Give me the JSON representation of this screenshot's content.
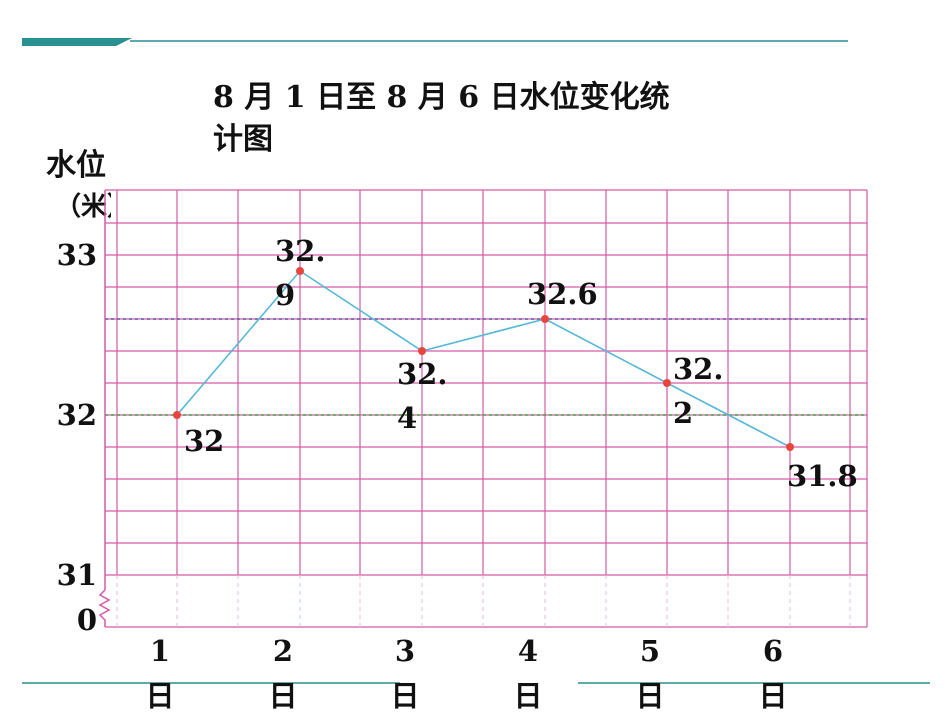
{
  "chart_data": {
    "type": "line",
    "title_line1": "8 月 1 日至 8 月 6 日水位变化统",
    "title_line2": "计图",
    "ylabel": "水位",
    "yunit": "（米）",
    "categories": [
      {
        "num": "1",
        "unit": "日"
      },
      {
        "num": "2",
        "unit": "日"
      },
      {
        "num": "3",
        "unit": "日"
      },
      {
        "num": "4",
        "unit": "日"
      },
      {
        "num": "5",
        "unit": "日"
      },
      {
        "num": "6",
        "unit": "日"
      }
    ],
    "values": [
      32,
      32.9,
      32.4,
      32.6,
      32.2,
      31.8
    ],
    "data_labels": [
      {
        "lines": [
          "32"
        ],
        "pos": "below-right"
      },
      {
        "lines": [
          "32.",
          "9"
        ],
        "pos": "above"
      },
      {
        "lines": [
          "32.",
          "4"
        ],
        "pos": "below"
      },
      {
        "lines": [
          "32.6"
        ],
        "pos": "above"
      },
      {
        "lines": [
          "32.",
          "2"
        ],
        "pos": "right"
      },
      {
        "lines": [
          "31.8"
        ],
        "pos": "below"
      }
    ],
    "yticks": [
      {
        "value": 33,
        "lines": [
          "33"
        ]
      },
      {
        "value": 32,
        "lines": [
          "32"
        ]
      },
      {
        "value": 31,
        "lines": [
          "31",
          "0"
        ]
      }
    ],
    "ylim": [
      31,
      33.2
    ],
    "axis_break": true,
    "reference_lines": [
      {
        "value": 32.6,
        "color": "#5a5aa8",
        "style": "dashed"
      },
      {
        "value": 32,
        "color": "#3aa83a",
        "style": "dashed"
      }
    ],
    "grid": true,
    "colors": {
      "grid": "#d65aa8",
      "line": "#55b8d8",
      "point": "#e8453c",
      "decor": "#2a8f8f"
    }
  }
}
